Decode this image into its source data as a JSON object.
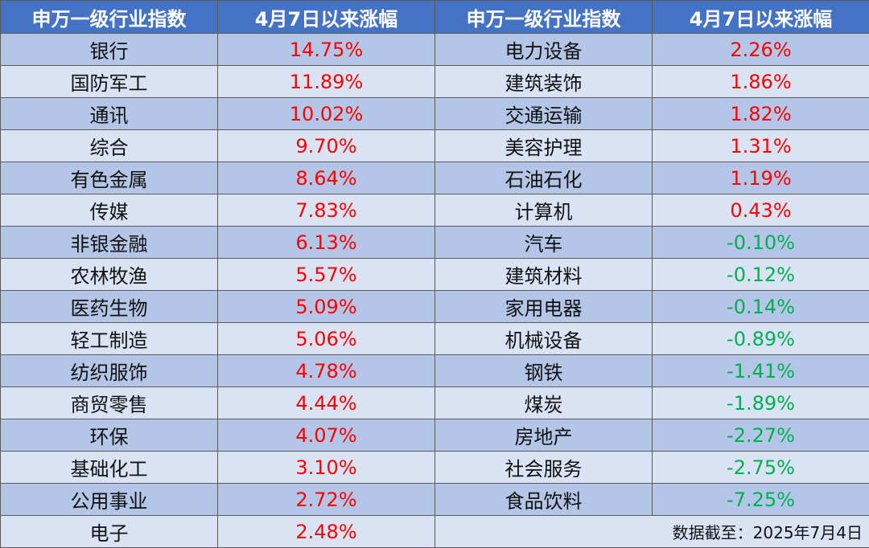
{
  "headers": [
    "申万一级行业指数",
    "4月7日以来涨幅",
    "申万一级行业指数",
    "4月7日以来涨幅"
  ],
  "rows": [
    {
      "left_name": "银行",
      "left_value": "14.75%",
      "right_name": "电力设备",
      "right_value": "2.26%"
    },
    {
      "left_name": "国防军工",
      "left_value": "11.89%",
      "right_name": "建筑装饰",
      "right_value": "1.86%"
    },
    {
      "left_name": "通讯",
      "left_value": "10.02%",
      "right_name": "交通运输",
      "right_value": "1.82%"
    },
    {
      "left_name": "综合",
      "left_value": "9.70%",
      "right_name": "美容护理",
      "right_value": "1.31%"
    },
    {
      "left_name": "有色金属",
      "left_value": "8.64%",
      "right_name": "石油石化",
      "right_value": "1.19%"
    },
    {
      "left_name": "传媒",
      "left_value": "7.83%",
      "right_name": "计算机",
      "right_value": "0.43%"
    },
    {
      "left_name": "非银金融",
      "left_value": "6.13%",
      "right_name": "汽车",
      "right_value": "-0.10%"
    },
    {
      "left_name": "农林牧渔",
      "left_value": "5.57%",
      "right_name": "建筑材料",
      "right_value": "-0.12%"
    },
    {
      "left_name": "医药生物",
      "left_value": "5.09%",
      "right_name": "家用电器",
      "right_value": "-0.14%"
    },
    {
      "left_name": "轻工制造",
      "left_value": "5.06%",
      "right_name": "机械设备",
      "right_value": "-0.89%"
    },
    {
      "left_name": "纺织服饰",
      "left_value": "4.78%",
      "right_name": "钢铁",
      "right_value": "-1.41%"
    },
    {
      "left_name": "商贸零售",
      "left_value": "4.44%",
      "right_name": "煤炭",
      "right_value": "-1.89%"
    },
    {
      "left_name": "环保",
      "left_value": "4.07%",
      "right_name": "房地产",
      "right_value": "-2.27%"
    },
    {
      "left_name": "基础化工",
      "left_value": "3.10%",
      "right_name": "社会服务",
      "right_value": "-2.75%"
    },
    {
      "left_name": "公用事业",
      "left_value": "2.72%",
      "right_name": "食品饮料",
      "right_value": "-7.25%"
    }
  ],
  "last_row": {
    "left_name": "电子",
    "left_value": "2.48%",
    "note": "数据截至：2025年7月4日"
  },
  "colors": {
    "header_bg": "#4472c4",
    "row_dark": "#b4c6e7",
    "row_light": "#dae3f3",
    "positive": "#ff0000",
    "negative": "#00b050"
  }
}
